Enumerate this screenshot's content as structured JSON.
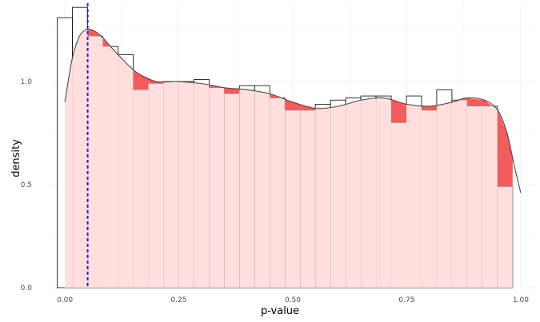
{
  "chart_data": {
    "type": "histogram-density",
    "xlabel": "p-value",
    "ylabel": "density",
    "xlim": [
      -0.03,
      1.03
    ],
    "ylim": [
      0,
      1.38
    ],
    "x_ticks": [
      {
        "value": 0.0,
        "label": "0.00"
      },
      {
        "value": 0.25,
        "label": "0.25"
      },
      {
        "value": 0.5,
        "label": "0.50"
      },
      {
        "value": 0.75,
        "label": "0.75"
      },
      {
        "value": 1.0,
        "label": "1.00"
      }
    ],
    "y_ticks": [
      {
        "value": 0.0,
        "label": "0.0"
      },
      {
        "value": 0.5,
        "label": "0.5"
      },
      {
        "value": 1.0,
        "label": "1.0"
      }
    ],
    "grid": true,
    "bin_width": 0.0333,
    "bin_start": -0.0167,
    "histogram_values": [
      1.31,
      1.36,
      1.22,
      1.17,
      1.13,
      0.96,
      0.99,
      1.0,
      1.0,
      1.01,
      0.97,
      0.94,
      0.98,
      0.98,
      0.92,
      0.86,
      0.86,
      0.89,
      0.91,
      0.92,
      0.93,
      0.93,
      0.8,
      0.93,
      0.86,
      0.96,
      0.91,
      0.88,
      0.88,
      0.49
    ],
    "density_x": [
      0.0,
      0.015,
      0.03,
      0.045,
      0.06,
      0.08,
      0.1,
      0.13,
      0.16,
      0.2,
      0.25,
      0.3,
      0.35,
      0.4,
      0.45,
      0.5,
      0.55,
      0.6,
      0.65,
      0.7,
      0.75,
      0.8,
      0.85,
      0.88,
      0.92,
      0.95,
      0.97,
      0.985,
      1.0
    ],
    "density_y": [
      0.9,
      1.1,
      1.21,
      1.25,
      1.25,
      1.22,
      1.17,
      1.1,
      1.04,
      1.0,
      1.0,
      0.99,
      0.97,
      0.96,
      0.94,
      0.9,
      0.87,
      0.88,
      0.91,
      0.92,
      0.89,
      0.88,
      0.9,
      0.92,
      0.91,
      0.86,
      0.75,
      0.6,
      0.46
    ],
    "vline": {
      "x": 0.05,
      "color": "#2222cc",
      "style": "dashed"
    },
    "colors": {
      "histogram_outline": "#000000",
      "histogram_fill": "#ffffff",
      "area_fill": "#ffdede",
      "excess_fill": "#f25c5c",
      "density_line": "#4a4a4a"
    }
  }
}
